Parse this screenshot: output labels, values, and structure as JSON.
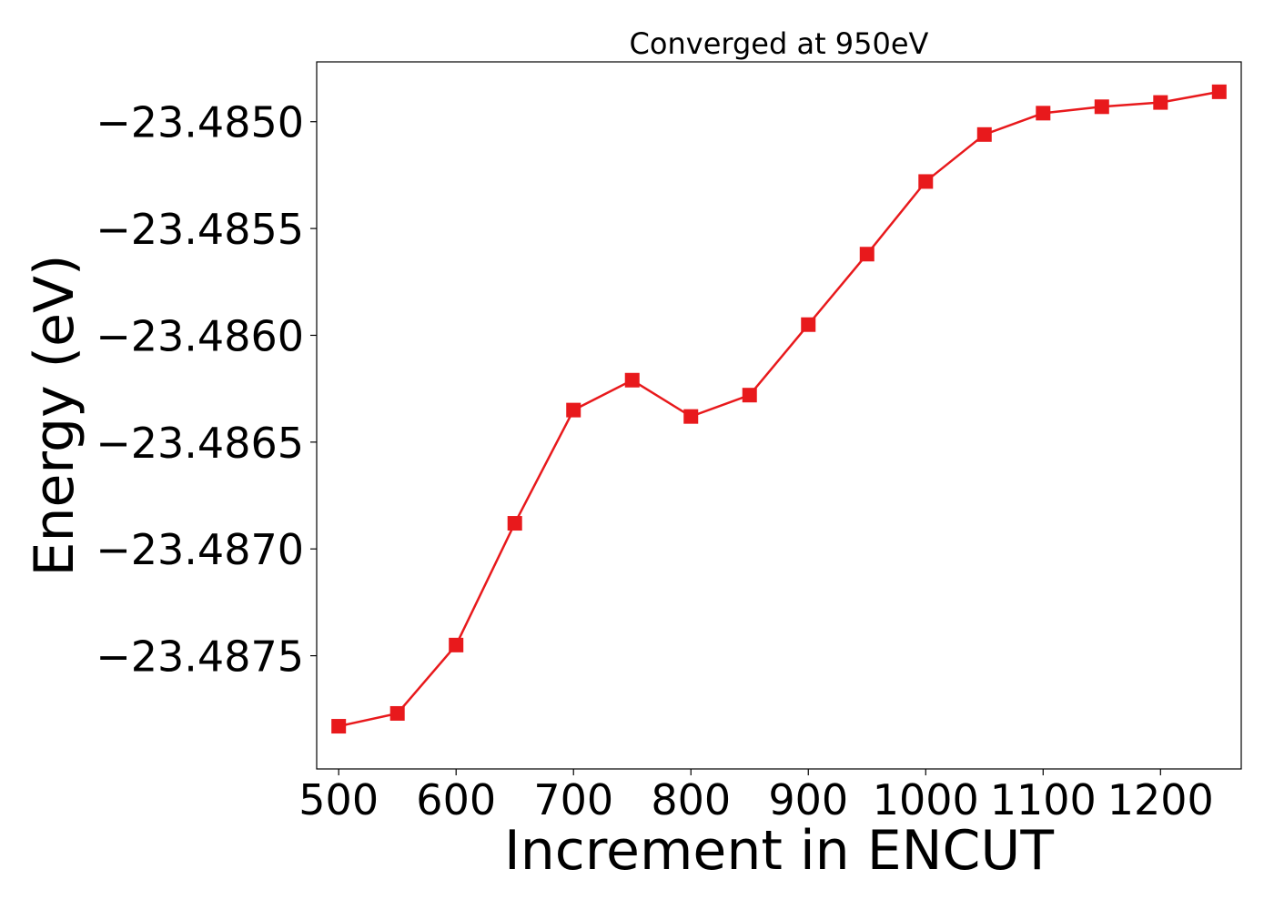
{
  "chart_data": {
    "type": "line",
    "title": "Converged at 950eV",
    "xlabel": "Increment in ENCUT",
    "ylabel": "Energy (eV)",
    "xlim": [
      481.25,
      1268.75
    ],
    "ylim": [
      -23.48803,
      -23.48472
    ],
    "x_ticks": [
      500,
      600,
      700,
      800,
      900,
      1000,
      1100,
      1200
    ],
    "x_tick_labels": [
      "500",
      "600",
      "700",
      "800",
      "900",
      "1000",
      "1100",
      "1200"
    ],
    "y_ticks": [
      -23.4875,
      -23.487,
      -23.4865,
      -23.486,
      -23.4855,
      -23.485
    ],
    "y_tick_labels": [
      "−23.4875",
      "−23.4870",
      "−23.4865",
      "−23.4860",
      "−23.4855",
      "−23.4850"
    ],
    "grid": false,
    "marker": "square",
    "color": "#e8191c",
    "series": [
      {
        "name": "",
        "x": [
          500,
          550,
          600,
          650,
          700,
          750,
          800,
          850,
          900,
          950,
          1000,
          1050,
          1100,
          1150,
          1200,
          1250
        ],
        "values": [
          -23.48783,
          -23.48777,
          -23.48745,
          -23.48688,
          -23.48635,
          -23.48621,
          -23.48638,
          -23.48628,
          -23.48595,
          -23.48562,
          -23.48528,
          -23.48506,
          -23.48496,
          -23.48493,
          -23.48491,
          -23.48486
        ]
      }
    ]
  }
}
